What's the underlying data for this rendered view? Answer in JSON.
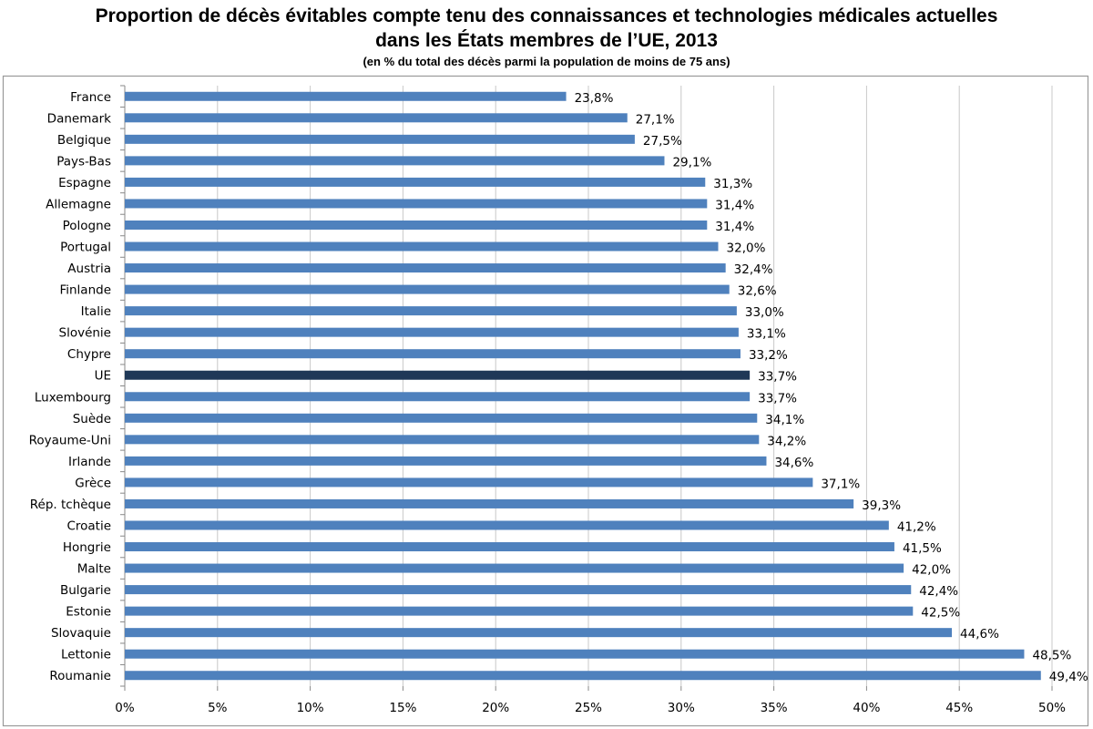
{
  "chart_data": {
    "type": "bar",
    "orientation": "horizontal",
    "title": "Proportion de décès évitables compte tenu des connaissances et technologies médicales actuelles",
    "title_line2": "dans les États membres de l’UE, 2013",
    "subtitle": "(en % du total des décès parmi la population de moins de 75 ans)",
    "xlabel": "",
    "ylabel": "",
    "xlim": [
      0,
      50
    ],
    "x_ticks": [
      "0%",
      "5%",
      "10%",
      "15%",
      "20%",
      "25%",
      "30%",
      "35%",
      "40%",
      "45%",
      "50%"
    ],
    "grid": "vertical",
    "categories": [
      "France",
      "Danemark",
      "Belgique",
      "Pays-Bas",
      "Espagne",
      "Allemagne",
      "Pologne",
      "Portugal",
      "Austria",
      "Finlande",
      "Italie",
      "Slovénie",
      "Chypre",
      "UE",
      "Luxembourg",
      "Suède",
      "Royaume-Uni",
      "Irlande",
      "Grèce",
      "Rép. tchèque",
      "Croatie",
      "Hongrie",
      "Malte",
      "Bulgarie",
      "Estonie",
      "Slovaquie",
      "Lettonie",
      "Roumanie"
    ],
    "values": [
      23.8,
      27.1,
      27.5,
      29.1,
      31.3,
      31.4,
      31.4,
      32.0,
      32.4,
      32.6,
      33.0,
      33.1,
      33.2,
      33.7,
      33.7,
      34.1,
      34.2,
      34.6,
      37.1,
      39.3,
      41.2,
      41.5,
      42.0,
      42.4,
      42.5,
      44.6,
      48.5,
      49.4
    ],
    "data_labels": [
      "23,8%",
      "27,1%",
      "27,5%",
      "29,1%",
      "31,3%",
      "31,4%",
      "31,4%",
      "32,0%",
      "32,4%",
      "32,6%",
      "33,0%",
      "33,1%",
      "33,2%",
      "33,7%",
      "33,7%",
      "34,1%",
      "34,2%",
      "34,6%",
      "37,1%",
      "39,3%",
      "41,2%",
      "41,5%",
      "42,0%",
      "42,4%",
      "42,5%",
      "44,6%",
      "48,5%",
      "49,4%"
    ],
    "highlight": "UE",
    "colors": {
      "bar": "#4f81bd",
      "highlight": "#1f3857",
      "grid": "#c8c8c8",
      "frame": "#9a9a9a"
    }
  }
}
